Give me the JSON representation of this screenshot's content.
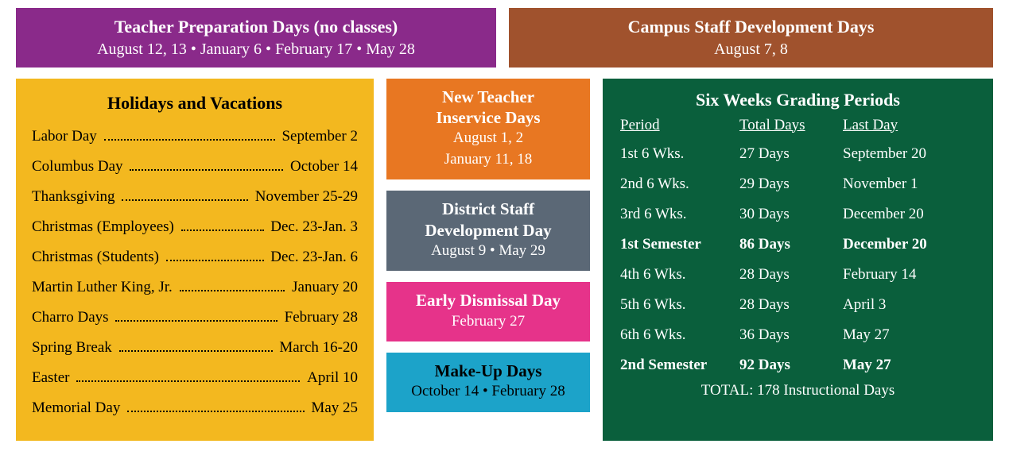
{
  "colors": {
    "teacher_prep": "#8a2a8a",
    "campus_staff": "#a0522d",
    "holidays": "#f3b81f",
    "new_teacher": "#e87722",
    "district_staff": "#5b6876",
    "early_dismissal": "#e6338a",
    "makeup": "#1ca3c9",
    "grading": "#0a5f3c"
  },
  "teacher_prep": {
    "title": "Teacher Preparation Days (no classes)",
    "dates": "August 12, 13  •  January 6  •  February 17  •  May 28"
  },
  "campus_staff": {
    "title": "Campus Staff Development Days",
    "dates": "August 7, 8"
  },
  "holidays": {
    "title": "Holidays and Vacations",
    "items": [
      {
        "name": "Labor Day",
        "date": "September 2"
      },
      {
        "name": "Columbus Day",
        "date": "October 14"
      },
      {
        "name": "Thanksgiving",
        "date": "November 25-29"
      },
      {
        "name": "Christmas (Employees)",
        "date": "Dec. 23-Jan. 3"
      },
      {
        "name": "Christmas (Students)",
        "date": "Dec. 23-Jan. 6"
      },
      {
        "name": "Martin Luther King, Jr.",
        "date": "January 20"
      },
      {
        "name": "Charro Days",
        "date": "February 28"
      },
      {
        "name": "Spring Break",
        "date": "March 16-20"
      },
      {
        "name": "Easter",
        "date": "April 10"
      },
      {
        "name": "Memorial Day",
        "date": "May 25"
      }
    ]
  },
  "new_teacher": {
    "title_l1": "New Teacher",
    "title_l2": "Inservice Days",
    "dates_l1": "August 1, 2",
    "dates_l2": "January 11, 18"
  },
  "district_staff": {
    "title_l1": "District Staff",
    "title_l2": "Development Day",
    "dates": "August 9  •  May 29"
  },
  "early_dismissal": {
    "title": "Early Dismissal Day",
    "dates": "February 27"
  },
  "makeup": {
    "title": "Make-Up Days",
    "dates": "October 14  •  February 28"
  },
  "grading": {
    "title": "Six Weeks Grading Periods",
    "head": {
      "period": "Period",
      "total": "Total Days",
      "last": "Last Day"
    },
    "rows": [
      {
        "period": "1st 6 Wks.",
        "total": "27 Days",
        "last": "September 20",
        "bold": false
      },
      {
        "period": "2nd 6 Wks.",
        "total": "29 Days",
        "last": "November 1",
        "bold": false
      },
      {
        "period": "3rd 6 Wks.",
        "total": "30 Days",
        "last": "December 20",
        "bold": false
      },
      {
        "period": "1st Semester",
        "total": "86 Days",
        "last": "December 20",
        "bold": true
      },
      {
        "period": "4th 6 Wks.",
        "total": "28 Days",
        "last": "February 14",
        "bold": false
      },
      {
        "period": "5th 6 Wks.",
        "total": "28 Days",
        "last": "April 3",
        "bold": false
      },
      {
        "period": "6th 6 Wks.",
        "total": "36 Days",
        "last": "May 27",
        "bold": false
      },
      {
        "period": "2nd Semester",
        "total": "92 Days",
        "last": "May 27",
        "bold": true
      }
    ],
    "total": "TOTAL: 178 Instructional Days"
  }
}
